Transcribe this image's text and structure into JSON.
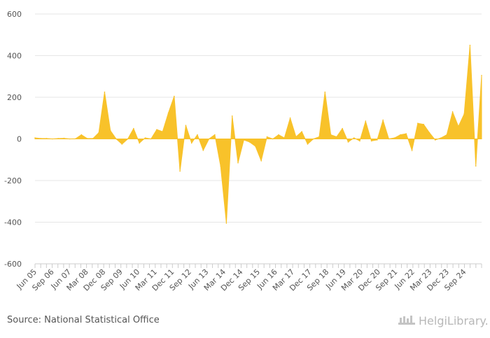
{
  "source": {
    "label": "Source: National Statistical Office"
  },
  "brand": {
    "name": "HelgiLibrary."
  },
  "colors": {
    "fill": "#F8C22A",
    "grid": "#E6E6E6",
    "axis": "#CCCCCC",
    "text": "#555555"
  },
  "chart_data": {
    "type": "area",
    "title": "",
    "xlabel": "",
    "ylabel": "",
    "ylim": [
      -600,
      600
    ],
    "yticks": [
      600,
      400,
      200,
      0,
      -200,
      -400,
      -600
    ],
    "grid": true,
    "legend": "none",
    "xtick_labels": [
      "Jun 05",
      "Sep 06",
      "Jun 07",
      "Mar 08",
      "Dec 08",
      "Sep 09",
      "Jun 10",
      "Mar 11",
      "Dec 11",
      "Sep 12",
      "Jun 13",
      "Mar 14",
      "Dec 14",
      "Sep 15",
      "Jun 16",
      "Mar 17",
      "Dec 17",
      "Sep 18",
      "Jun 19",
      "Mar 20",
      "Dec 20",
      "Sep 21",
      "Jun 22",
      "Mar 23",
      "Dec 23",
      "Sep 24"
    ],
    "x_start_label": "Jun 05",
    "x_step": "quarter",
    "values": [
      5,
      2,
      2,
      0,
      2,
      3,
      0,
      1,
      20,
      2,
      2,
      30,
      225,
      40,
      0,
      -25,
      0,
      50,
      -20,
      5,
      0,
      45,
      35,
      125,
      205,
      -155,
      65,
      -20,
      20,
      -55,
      0,
      20,
      -130,
      -405,
      110,
      -115,
      -5,
      -15,
      -35,
      -105,
      10,
      0,
      20,
      5,
      100,
      10,
      35,
      -25,
      0,
      10,
      225,
      20,
      10,
      50,
      -15,
      5,
      -10,
      85,
      -10,
      -5,
      90,
      0,
      5,
      20,
      25,
      -55,
      75,
      70,
      30,
      -5,
      5,
      20,
      130,
      60,
      120,
      450,
      -130,
      305
    ]
  }
}
